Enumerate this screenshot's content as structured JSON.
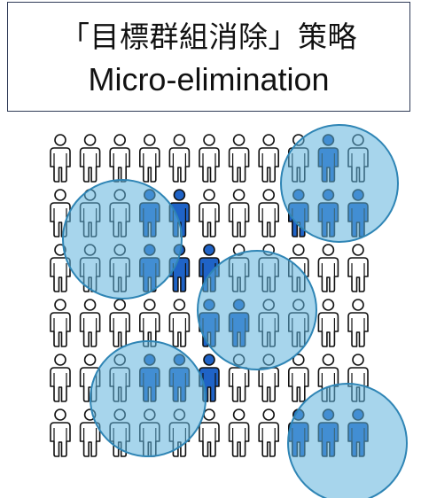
{
  "title": {
    "line1": "「目標群組消除」策略",
    "line2": "Micro-elimination"
  },
  "figure": {
    "rows": 6,
    "cols": 11,
    "person_color_default": "#ffffff",
    "person_outline_color": "#111111",
    "person_color_highlight": "#1f63c7",
    "circle_fill": "#5fb3dd",
    "circle_stroke": "#2f85b5",
    "groups": [
      {
        "name": "top-right-group",
        "highlighted": [
          [
            0,
            9
          ],
          [
            1,
            9
          ],
          [
            1,
            8
          ],
          [
            1,
            10
          ]
        ]
      },
      {
        "name": "upper-left-group",
        "highlighted": [
          [
            1,
            3
          ],
          [
            1,
            4
          ],
          [
            2,
            3
          ],
          [
            2,
            4
          ]
        ]
      },
      {
        "name": "center-group",
        "highlighted": [
          [
            2,
            5
          ],
          [
            3,
            5
          ],
          [
            3,
            6
          ]
        ]
      },
      {
        "name": "lower-left-group",
        "highlighted": [
          [
            4,
            3
          ],
          [
            4,
            4
          ],
          [
            4,
            5
          ]
        ]
      },
      {
        "name": "bottom-right-group",
        "highlighted": [
          [
            5,
            8
          ],
          [
            5,
            9
          ],
          [
            5,
            10
          ]
        ]
      }
    ]
  }
}
